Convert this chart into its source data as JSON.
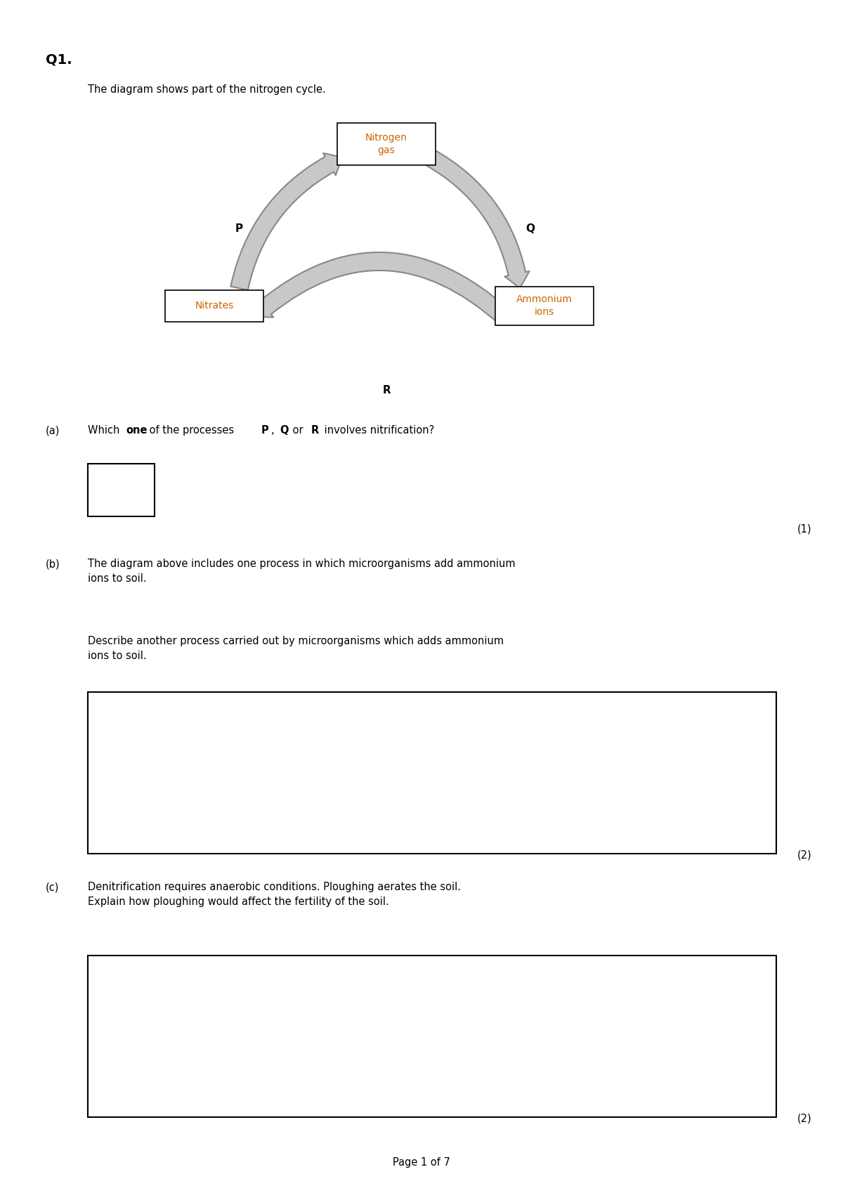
{
  "background_color": "#ffffff",
  "page_width": 12.0,
  "page_height": 16.98,
  "q1_label": "Q1.",
  "intro_text": "The diagram shows part of the nitrogen cycle.",
  "nitrogen_gas_label": "Nitrogen\ngas",
  "nitrates_label": "Nitrates",
  "ammonium_label": "Ammonium\nions",
  "p_label": "P",
  "q_label": "Q",
  "r_label": "R",
  "arrow_facecolor": "#c8c8c8",
  "arrow_edgecolor": "#888888",
  "node_text_color": "#cc6600",
  "part_a_label": "(a)",
  "part_b_label": "(b)",
  "part_b_text1": "The diagram above includes one process in which microorganisms add ammonium\nions to soil.",
  "part_b_text2": "Describe another process carried out by microorganisms which adds ammonium\nions to soil.",
  "part_c_label": "(c)",
  "part_c_text": "Denitrification requires anaerobic conditions. Ploughing aerates the soil.\nExplain how ploughing would affect the fertility of the soil.",
  "mark1": "(1)",
  "mark2a": "(2)",
  "mark2b": "(2)",
  "page_footer": "Page 1 of 7"
}
